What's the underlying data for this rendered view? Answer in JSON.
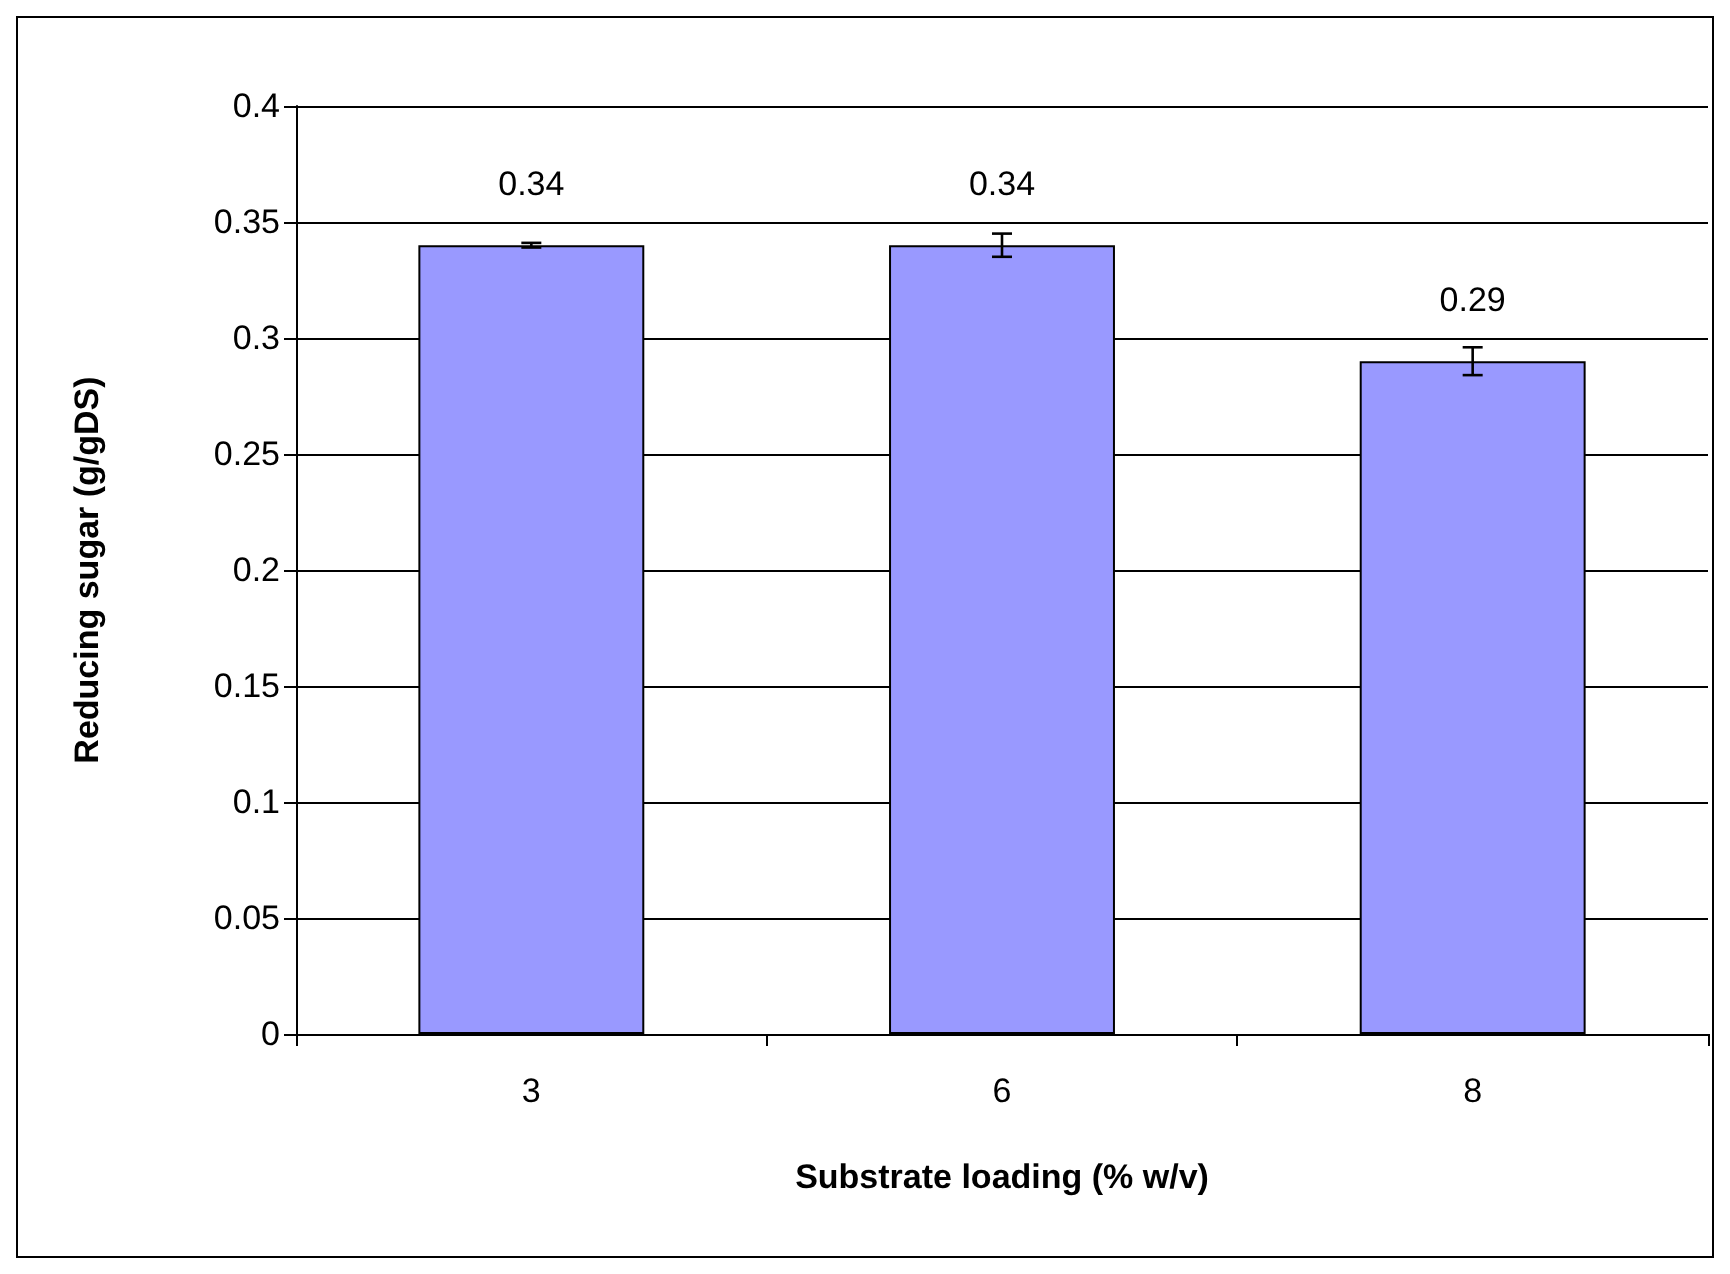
{
  "chart_data": {
    "type": "bar",
    "xlabel": "Substrate loading (% w/v)",
    "ylabel": "Reducing sugar (g/gDS)",
    "categories": [
      "3",
      "6",
      "8"
    ],
    "series": [
      {
        "color": "#9999ff",
        "values": [
          0.34,
          0.34,
          0.29
        ],
        "errors": [
          0.001,
          0.005,
          0.006
        ]
      }
    ],
    "ylim": [
      0,
      0.4
    ],
    "yticks": [
      0,
      0.05,
      0.1,
      0.15,
      0.2,
      0.25,
      0.3,
      0.35,
      0.4
    ],
    "grid": "y",
    "data_labels": true
  }
}
